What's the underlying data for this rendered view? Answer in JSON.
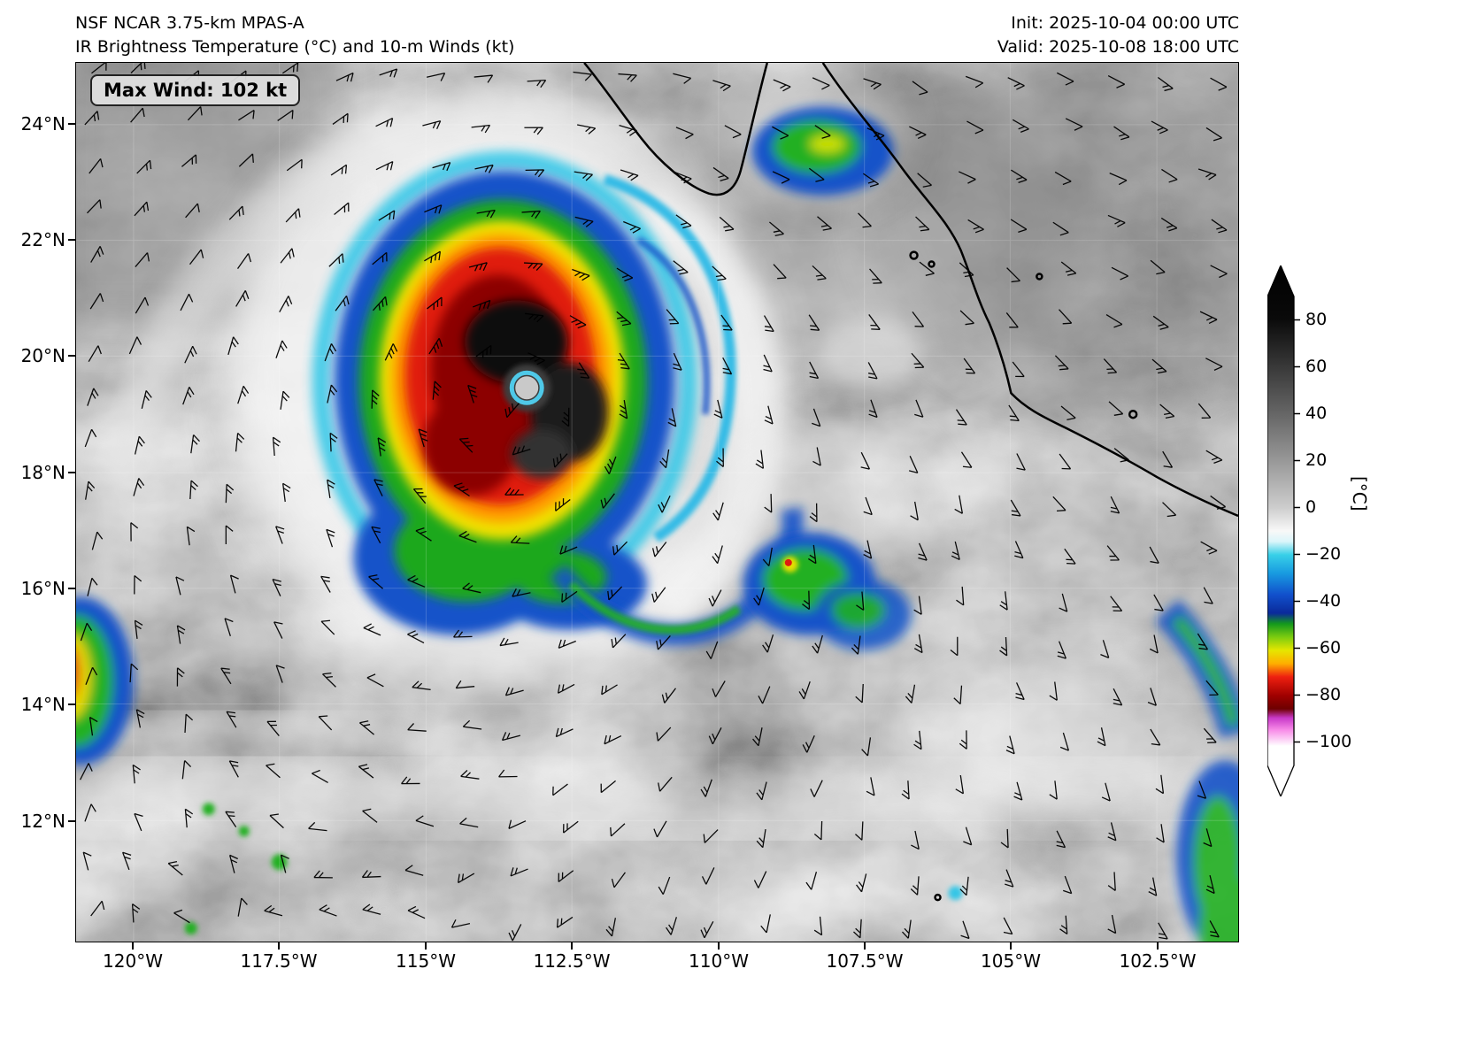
{
  "header": {
    "model": "NSF NCAR 3.75-km MPAS-A",
    "product": "IR Brightness Temperature (°C) and 10-m Winds (kt)",
    "init": "Init: 2025-10-04 00:00 UTC",
    "valid": "Valid: 2025-10-08 18:00 UTC"
  },
  "badge": {
    "max_wind": "Max Wind: 102 kt"
  },
  "chart_data": {
    "type": "heatmap",
    "title": "IR Brightness Temperature (°C) and 10-m Winds (kt)",
    "model": "NSF NCAR 3.75-km MPAS-A",
    "init_time": "2025-10-04 00:00 UTC",
    "valid_time": "2025-10-08 18:00 UTC",
    "max_wind_kt": 102,
    "x_ticks": [
      "120°W",
      "117.5°W",
      "115°W",
      "112.5°W",
      "110°W",
      "107.5°W",
      "105°W",
      "102.5°W"
    ],
    "y_ticks": [
      "24°N",
      "22°N",
      "20°N",
      "18°N",
      "16°N",
      "14°N",
      "12°N"
    ],
    "grid": true,
    "colorbar": {
      "label": "[°C]",
      "orientation": "vertical-right",
      "tick_labels": [
        "80",
        "60",
        "40",
        "20",
        "0",
        "−20",
        "−40",
        "−60",
        "−80",
        "−100"
      ],
      "tick_values": [
        80,
        60,
        40,
        20,
        0,
        -20,
        -40,
        -60,
        -80,
        -100
      ],
      "range": [
        90,
        -110
      ],
      "palette_stops": [
        {
          "value": 80,
          "color": "#0a0a0a"
        },
        {
          "value": 40,
          "color": "#666666"
        },
        {
          "value": 0,
          "color": "#cccccc"
        },
        {
          "value": -10,
          "color": "#f8f8f8"
        },
        {
          "value": -20,
          "color": "#38d0e8"
        },
        {
          "value": -40,
          "color": "#1150cc"
        },
        {
          "value": -50,
          "color": "#14991c"
        },
        {
          "value": -58,
          "color": "#e6e600"
        },
        {
          "value": -63,
          "color": "#ffae00"
        },
        {
          "value": -68,
          "color": "#ee2010"
        },
        {
          "value": -78,
          "color": "#6e0000"
        },
        {
          "value": -84,
          "color": "#f88ce8"
        },
        {
          "value": -95,
          "color": "#ffffff"
        }
      ]
    },
    "wind_barbs": {
      "units": "kt",
      "style": "standard-barbs",
      "coverage": "full-domain"
    },
    "storm": {
      "feature": "tropical-cyclone-with-eye",
      "approx_center": {
        "lon": "113.3°W",
        "lat": "19.5°N"
      },
      "max_wind_kt": 102
    },
    "geography": [
      "Baja California peninsula tip",
      "Mexican mainland Pacific coast"
    ]
  }
}
